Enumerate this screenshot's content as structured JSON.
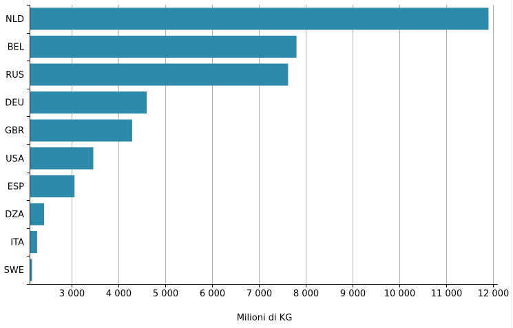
{
  "chart_data": {
    "type": "bar",
    "orientation": "horizontal",
    "categories": [
      "NLD",
      "BEL",
      "RUS",
      "DEU",
      "GBR",
      "USA",
      "ESP",
      "DZA",
      "ITA",
      "SWE"
    ],
    "values": [
      11900,
      7800,
      7620,
      4600,
      4290,
      3460,
      3060,
      2410,
      2260,
      2150
    ],
    "xlabel": "Milioni di KG",
    "xlim": [
      2100,
      12100
    ],
    "xticks": [
      3000,
      4000,
      5000,
      6000,
      7000,
      8000,
      9000,
      10000,
      11000,
      12000
    ],
    "xtick_labels": [
      "3 000",
      "4 000",
      "5 000",
      "6 000",
      "7 000",
      "8 000",
      "9 000",
      "10 000",
      "11 000",
      "12 000"
    ],
    "bar_color": "#2e8aab",
    "grid": "vertical"
  }
}
